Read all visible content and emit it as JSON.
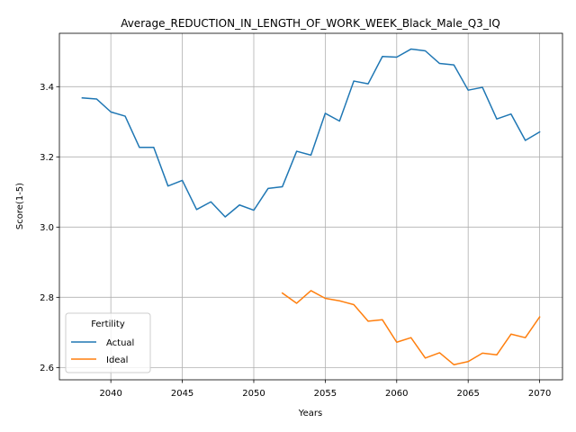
{
  "chart_data": {
    "type": "line",
    "title": "Average_REDUCTION_IN_LENGTH_OF_WORK_WEEK_Black_Male_Q3_IQ",
    "xlabel": "Years",
    "ylabel": "Score(1-5)",
    "xlim": [
      2036.4,
      2071.6
    ],
    "ylim": [
      2.565,
      3.552
    ],
    "x_ticks": [
      2040,
      2045,
      2050,
      2055,
      2060,
      2065,
      2070
    ],
    "y_ticks": [
      2.6,
      2.8,
      3.0,
      3.2,
      3.4
    ],
    "grid": true,
    "legend": {
      "title": "Fertility",
      "placement": "lower-left",
      "entries": [
        "Actual",
        "Ideal"
      ]
    },
    "series": [
      {
        "name": "Actual",
        "color": "#1f77b4",
        "x": [
          2038,
          2039,
          2040,
          2041,
          2042,
          2043,
          2044,
          2045,
          2046,
          2047,
          2048,
          2049,
          2050,
          2051,
          2052,
          2053,
          2054,
          2055,
          2056,
          2057,
          2058,
          2059,
          2060,
          2061,
          2062,
          2063,
          2064,
          2065,
          2066,
          2067,
          2068,
          2069,
          2070
        ],
        "values": [
          3.368,
          3.365,
          3.328,
          3.316,
          3.227,
          3.227,
          3.117,
          3.133,
          3.05,
          3.072,
          3.029,
          3.063,
          3.048,
          3.11,
          3.115,
          3.216,
          3.205,
          3.324,
          3.302,
          3.416,
          3.408,
          3.486,
          3.484,
          3.507,
          3.502,
          3.466,
          3.462,
          3.39,
          3.398,
          3.308,
          3.322,
          3.247,
          3.271
        ]
      },
      {
        "name": "Ideal",
        "color": "#ff7f0e",
        "x": [
          2052,
          2053,
          2054,
          2055,
          2056,
          2057,
          2058,
          2059,
          2060,
          2061,
          2062,
          2063,
          2064,
          2065,
          2066,
          2067,
          2068,
          2069,
          2070
        ],
        "values": [
          2.812,
          2.783,
          2.819,
          2.797,
          2.79,
          2.779,
          2.732,
          2.736,
          2.672,
          2.685,
          2.627,
          2.642,
          2.608,
          2.617,
          2.641,
          2.636,
          2.695,
          2.685,
          2.744
        ]
      }
    ]
  }
}
